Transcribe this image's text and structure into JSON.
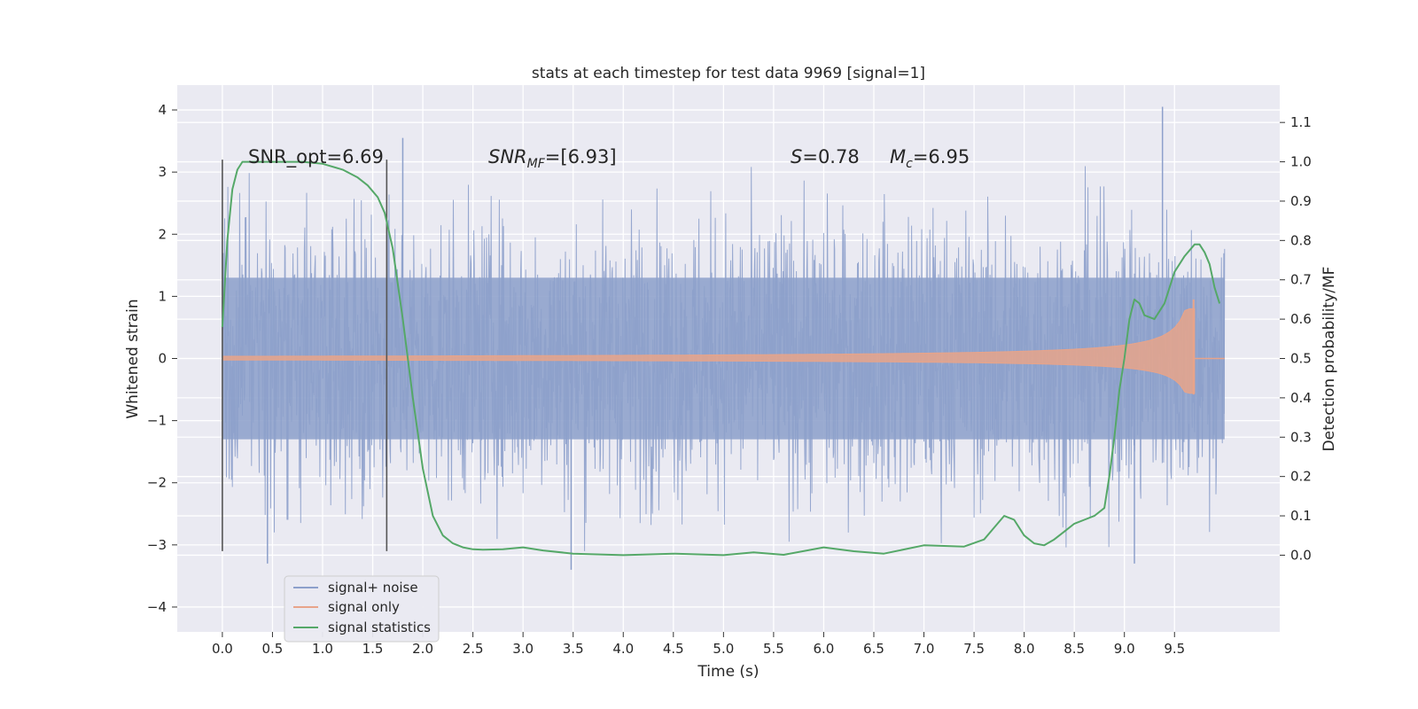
{
  "chart_data": {
    "type": "line",
    "title": "stats at each timestep for test data 9969 [signal=1]",
    "xlabel": "Time (s)",
    "ylabel_left": "Whitened strain",
    "ylabel_right": "Detection probability/MF",
    "xlim": [
      -0.45,
      10.55
    ],
    "ylim_left": [
      -4.4,
      4.4
    ],
    "ylim_right": [
      -0.195,
      1.195
    ],
    "x_ticks": [
      "0.0",
      "0.5",
      "1.0",
      "1.5",
      "2.0",
      "2.5",
      "3.0",
      "3.5",
      "4.0",
      "4.5",
      "5.0",
      "5.5",
      "6.0",
      "6.5",
      "7.0",
      "7.5",
      "8.0",
      "8.5",
      "9.0",
      "9.5"
    ],
    "y_left_ticks": [
      "4",
      "3",
      "2",
      "1",
      "0",
      "−1",
      "−2",
      "−3",
      "−4"
    ],
    "y_right_ticks": [
      "1.1",
      "1.0",
      "0.9",
      "0.8",
      "0.7",
      "0.6",
      "0.5",
      "0.4",
      "0.3",
      "0.2",
      "0.1",
      "0.0"
    ],
    "grid": true,
    "legend_position": "lower-left",
    "annotations": {
      "snr_opt": "SNR_opt=6.69",
      "snr_mf_main": "SNR",
      "snr_mf_sub": "MF",
      "snr_mf_val": "=[6.93]",
      "s_main": "S",
      "s_val": "=0.78",
      "mc_main": "M",
      "mc_sub": "c",
      "mc_val": "=6.95"
    },
    "vlines_x": [
      0.0,
      1.64
    ],
    "vline_range": [
      -3.1,
      3.2
    ],
    "series": [
      {
        "name": "signal+ noise",
        "color": "#8da0cb",
        "x_range": [
          0.0,
          10.0
        ],
        "core_amplitude": 1.3,
        "peak_max": 4.05,
        "peak_min": -3.4
      },
      {
        "name": "signal only",
        "color": "#e8a48a",
        "x_range": [
          0.0,
          9.7
        ],
        "peak_max": 0.95,
        "peak_min": -0.58
      },
      {
        "name": "signal statistics",
        "color": "#55a868",
        "axis": "right",
        "x": [
          0.0,
          0.05,
          0.1,
          0.15,
          0.2,
          0.3,
          0.5,
          0.8,
          1.0,
          1.2,
          1.35,
          1.45,
          1.55,
          1.62,
          1.7,
          1.8,
          1.9,
          2.0,
          2.1,
          2.2,
          2.3,
          2.4,
          2.5,
          2.6,
          2.8,
          3.0,
          3.2,
          3.5,
          4.0,
          4.5,
          5.0,
          5.3,
          5.6,
          6.0,
          6.3,
          6.6,
          7.0,
          7.4,
          7.6,
          7.7,
          7.8,
          7.9,
          8.0,
          8.1,
          8.2,
          8.3,
          8.4,
          8.5,
          8.6,
          8.7,
          8.8,
          8.85,
          8.9,
          8.95,
          9.0,
          9.05,
          9.1,
          9.15,
          9.2,
          9.3,
          9.4,
          9.5,
          9.6,
          9.7,
          9.75,
          9.8,
          9.85,
          9.9,
          9.95
        ],
        "y": [
          0.58,
          0.8,
          0.93,
          0.98,
          1.0,
          1.0,
          1.0,
          1.0,
          0.995,
          0.98,
          0.96,
          0.94,
          0.91,
          0.87,
          0.78,
          0.6,
          0.4,
          0.22,
          0.1,
          0.05,
          0.03,
          0.02,
          0.015,
          0.014,
          0.015,
          0.02,
          0.012,
          0.004,
          0.0,
          0.004,
          0.0,
          0.007,
          0.001,
          0.02,
          0.01,
          0.004,
          0.025,
          0.022,
          0.04,
          0.07,
          0.1,
          0.09,
          0.05,
          0.03,
          0.025,
          0.04,
          0.06,
          0.08,
          0.09,
          0.1,
          0.12,
          0.2,
          0.3,
          0.42,
          0.5,
          0.6,
          0.65,
          0.64,
          0.61,
          0.6,
          0.64,
          0.72,
          0.76,
          0.79,
          0.79,
          0.77,
          0.74,
          0.68,
          0.64
        ]
      }
    ]
  }
}
